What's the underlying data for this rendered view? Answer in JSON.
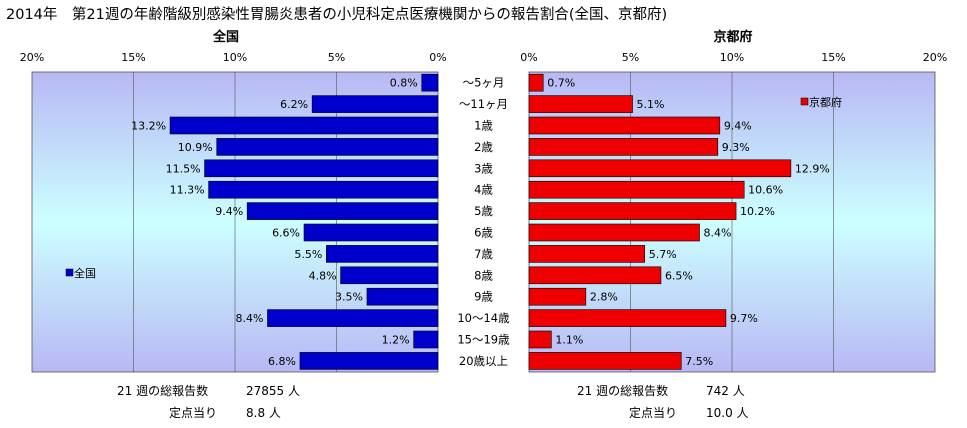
{
  "title": "2014年　第21週の年齢階級別感染性胃腸炎患者の小児科定点医療機関からの報告割合(全国、京都府)",
  "age_groups": [
    "～5ヶ月",
    "～11ヶ月",
    "1歳",
    "2歳",
    "3歳",
    "4歳",
    "5歳",
    "6歳",
    "7歳",
    "8歳",
    "9歳",
    "10～14歳",
    "15～19歳",
    "20歳以上"
  ],
  "chart_data": [
    {
      "type": "bar",
      "title": "全国",
      "orientation": "horizontal",
      "x_reversed": true,
      "categories": [
        "～5ヶ月",
        "～11ヶ月",
        "1歳",
        "2歳",
        "3歳",
        "4歳",
        "5歳",
        "6歳",
        "7歳",
        "8歳",
        "9歳",
        "10～14歳",
        "15～19歳",
        "20歳以上"
      ],
      "series": [
        {
          "name": "全国",
          "values": [
            0.8,
            6.2,
            13.2,
            10.9,
            11.5,
            11.3,
            9.4,
            6.6,
            5.5,
            4.8,
            3.5,
            8.4,
            1.2,
            6.8
          ]
        }
      ],
      "value_labels": [
        "0.8%",
        "6.2%",
        "13.2%",
        "10.9%",
        "11.5%",
        "11.3%",
        "9.4%",
        "6.6%",
        "5.5%",
        "4.8%",
        "3.5%",
        "8.4%",
        "1.2%",
        "6.8%"
      ],
      "xlim": [
        0,
        20
      ],
      "tick_labels": [
        "20%",
        "15%",
        "10%",
        "5%",
        "0%"
      ],
      "grid": true,
      "legend": "left",
      "color": "#0000cc"
    },
    {
      "type": "bar",
      "title": "京都府",
      "orientation": "horizontal",
      "categories": [
        "～5ヶ月",
        "～11ヶ月",
        "1歳",
        "2歳",
        "3歳",
        "4歳",
        "5歳",
        "6歳",
        "7歳",
        "8歳",
        "9歳",
        "10～14歳",
        "15～19歳",
        "20歳以上"
      ],
      "series": [
        {
          "name": "京都府",
          "values": [
            0.7,
            5.1,
            9.4,
            9.3,
            12.9,
            10.6,
            10.2,
            8.4,
            5.7,
            6.5,
            2.8,
            9.7,
            1.1,
            7.5
          ]
        }
      ],
      "value_labels": [
        "0.7%",
        "5.1%",
        "9.4%",
        "9.3%",
        "12.9%",
        "10.6%",
        "10.2%",
        "8.4%",
        "5.7%",
        "6.5%",
        "2.8%",
        "9.7%",
        "1.1%",
        "7.5%"
      ],
      "xlim": [
        0,
        20
      ],
      "tick_labels": [
        "0%",
        "5%",
        "10%",
        "15%",
        "20%"
      ],
      "grid": true,
      "legend": "top-right",
      "color": "#ee0000"
    }
  ],
  "footer": {
    "national": {
      "total_label": "21 週の総報告数",
      "total_value": "27855 人",
      "per_site_label": "定点当り",
      "per_site_value": "8.8 人"
    },
    "kyoto": {
      "total_label": "21 週の総報告数",
      "total_value": "742 人",
      "per_site_label": "定点当り",
      "per_site_value": "10.0 人"
    }
  },
  "colors": {
    "national_bar": "#0000cc",
    "kyoto_bar": "#ee0000",
    "plot_edge": "#b8b8f4",
    "plot_mid": "#ccffff"
  }
}
